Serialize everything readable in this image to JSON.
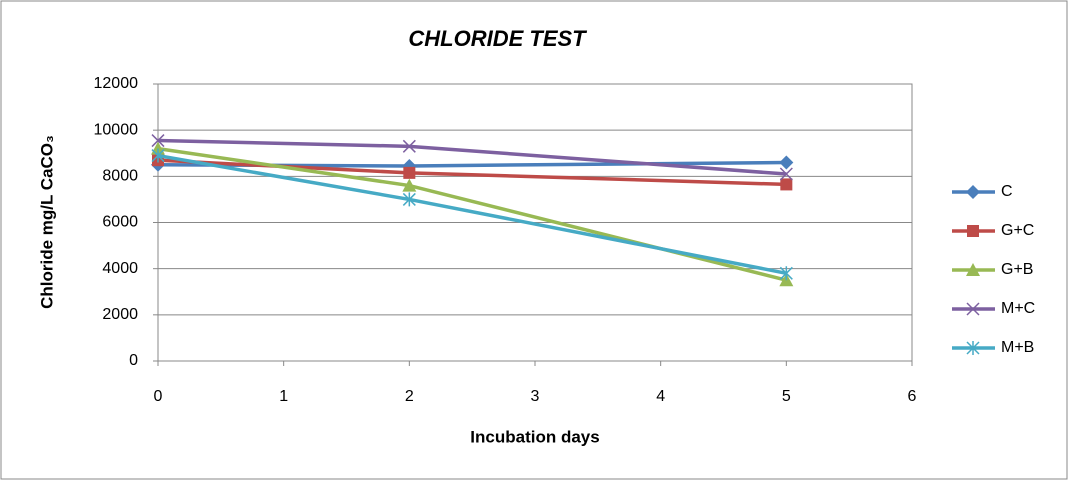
{
  "chart_data": {
    "type": "line",
    "title": "CHLORIDE TEST",
    "x_label": "Incubation days",
    "y_label": "Chloride mg/L  CaCO₃",
    "x": [
      0,
      2,
      5
    ],
    "xlim": [
      0,
      6
    ],
    "xticks": [
      0,
      1,
      2,
      3,
      4,
      5,
      6
    ],
    "ylim": [
      0,
      12000
    ],
    "yticks": [
      0,
      2000,
      4000,
      6000,
      8000,
      10000,
      12000
    ],
    "grid": true,
    "legend": "right",
    "series": [
      {
        "name": "C",
        "color": "#4a7ebb",
        "marker": "diamond",
        "values": [
          8500,
          8450,
          8600
        ]
      },
      {
        "name": "G+C",
        "color": "#be4b48",
        "marker": "square",
        "values": [
          8700,
          8150,
          7650
        ]
      },
      {
        "name": "G+B",
        "color": "#98b954",
        "marker": "triangle",
        "values": [
          9200,
          7600,
          3500
        ]
      },
      {
        "name": "M+C",
        "color": "#7d60a0",
        "marker": "x",
        "values": [
          9550,
          9300,
          8100
        ]
      },
      {
        "name": "M+B",
        "color": "#46aac5",
        "marker": "star",
        "values": [
          8900,
          7000,
          3800
        ]
      }
    ]
  }
}
